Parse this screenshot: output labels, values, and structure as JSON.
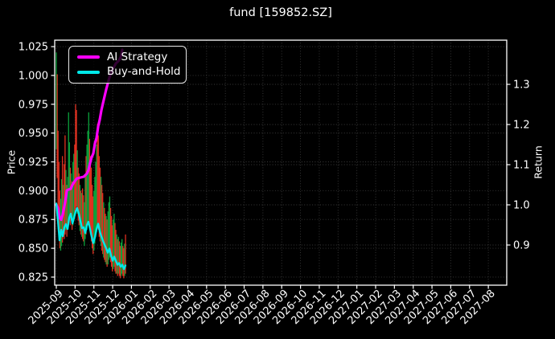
{
  "title": "fund [159852.SZ]",
  "chart_data": {
    "type": "mixed",
    "title": "fund [159852.SZ]",
    "background": "#000000",
    "text_color": "#ffffff",
    "frame_color": "#ffffff",
    "grid": {
      "on": true,
      "style": "dotted",
      "color": "#3b3b3b"
    },
    "x_axis": {
      "tick_labels": [
        "2025-09",
        "2025-10",
        "2025-11",
        "2025-12",
        "2026-01",
        "2026-02",
        "2026-03",
        "2026-04",
        "2026-05",
        "2026-06",
        "2026-07",
        "2026-08",
        "2026-09",
        "2026-10",
        "2026-11",
        "2026-12",
        "2027-01",
        "2027-02",
        "2027-03",
        "2027-04",
        "2027-05",
        "2027-06",
        "2027-07",
        "2027-08"
      ],
      "xlim_months": [
        -0.086,
        23.98
      ],
      "tick_rotation_deg": 45
    },
    "left_axis": {
      "label": "Price",
      "tick_labels": [
        "1.025",
        "1.000",
        "0.975",
        "0.950",
        "0.925",
        "0.900",
        "0.875",
        "0.850",
        "0.825"
      ],
      "tick_values": [
        1.025,
        1.0,
        0.975,
        0.95,
        0.925,
        0.9,
        0.875,
        0.85,
        0.825
      ],
      "ylim": [
        0.818,
        1.0306
      ]
    },
    "right_axis": {
      "label": "Return",
      "tick_labels": [
        "1.3",
        "1.2",
        "1.1",
        "1.0",
        "0.9"
      ],
      "tick_values": [
        1.3,
        1.2,
        1.1,
        1.0,
        0.9
      ],
      "ylim": [
        0.8,
        1.41
      ]
    },
    "legend": {
      "position": "upper-left",
      "items": [
        {
          "label": "AI Strategy",
          "color": "#ff00ff"
        },
        {
          "label": "Buy-and-Hold",
          "color": "#00e8e8"
        }
      ]
    },
    "series": [
      {
        "name": "AI Strategy",
        "type": "line",
        "axis": "right",
        "color": "#ff00ff",
        "width": 3.2,
        "points": [
          [
            0.0,
            1.0
          ],
          [
            0.09,
            0.992
          ],
          [
            0.17,
            0.968
          ],
          [
            0.26,
            0.963
          ],
          [
            0.34,
            0.976
          ],
          [
            0.43,
            0.996
          ],
          [
            0.51,
            1.018
          ],
          [
            0.56,
            1.036
          ],
          [
            0.64,
            1.038
          ],
          [
            0.77,
            1.04
          ],
          [
            0.86,
            1.05
          ],
          [
            0.94,
            1.056
          ],
          [
            1.03,
            1.062
          ],
          [
            1.11,
            1.066
          ],
          [
            1.28,
            1.068
          ],
          [
            1.46,
            1.07
          ],
          [
            1.63,
            1.078
          ],
          [
            1.71,
            1.086
          ],
          [
            1.8,
            1.104
          ],
          [
            1.88,
            1.118
          ],
          [
            1.97,
            1.128
          ],
          [
            2.06,
            1.154
          ],
          [
            2.14,
            1.166
          ],
          [
            2.23,
            1.196
          ],
          [
            2.31,
            1.212
          ],
          [
            2.4,
            1.236
          ],
          [
            2.48,
            1.252
          ],
          [
            2.57,
            1.27
          ],
          [
            2.66,
            1.288
          ],
          [
            2.74,
            1.302
          ],
          [
            2.83,
            1.318
          ],
          [
            2.91,
            1.328
          ],
          [
            3.0,
            1.338
          ],
          [
            3.08,
            1.344
          ],
          [
            3.17,
            1.352
          ],
          [
            3.26,
            1.356
          ],
          [
            3.34,
            1.36
          ],
          [
            3.43,
            1.368
          ],
          [
            3.51,
            1.386
          ]
        ]
      },
      {
        "name": "Buy-and-Hold",
        "type": "line",
        "axis": "right",
        "color": "#00e8e8",
        "width": 2.4,
        "points": [
          [
            0.0,
            1.003
          ],
          [
            0.09,
            0.96
          ],
          [
            0.17,
            0.912
          ],
          [
            0.26,
            0.938
          ],
          [
            0.34,
            0.922
          ],
          [
            0.43,
            0.944
          ],
          [
            0.51,
            0.952
          ],
          [
            0.6,
            0.94
          ],
          [
            0.69,
            0.968
          ],
          [
            0.77,
            0.978
          ],
          [
            0.86,
            0.954
          ],
          [
            0.94,
            0.968
          ],
          [
            1.03,
            0.984
          ],
          [
            1.11,
            0.992
          ],
          [
            1.2,
            0.978
          ],
          [
            1.28,
            0.96
          ],
          [
            1.37,
            0.942
          ],
          [
            1.46,
            0.944
          ],
          [
            1.54,
            0.93
          ],
          [
            1.63,
            0.95
          ],
          [
            1.71,
            0.958
          ],
          [
            1.8,
            0.94
          ],
          [
            1.88,
            0.921
          ],
          [
            1.97,
            0.905
          ],
          [
            2.06,
            0.92
          ],
          [
            2.14,
            0.94
          ],
          [
            2.23,
            0.953
          ],
          [
            2.31,
            0.934
          ],
          [
            2.4,
            0.921
          ],
          [
            2.48,
            0.911
          ],
          [
            2.57,
            0.901
          ],
          [
            2.66,
            0.891
          ],
          [
            2.74,
            0.881
          ],
          [
            2.83,
            0.891
          ],
          [
            2.91,
            0.874
          ],
          [
            3.0,
            0.861
          ],
          [
            3.08,
            0.871
          ],
          [
            3.17,
            0.861
          ],
          [
            3.26,
            0.851
          ],
          [
            3.34,
            0.855
          ],
          [
            3.43,
            0.846
          ],
          [
            3.51,
            0.851
          ],
          [
            3.6,
            0.84
          ],
          [
            3.68,
            0.849
          ]
        ]
      },
      {
        "name": "fund daily high-low bars",
        "type": "candlestick",
        "axis": "left",
        "up_color": "#0ba13b",
        "down_color": "#e03020",
        "bars": [
          [
            0.0,
            0.936,
            1.02,
            "u"
          ],
          [
            0.047,
            0.911,
            1.001,
            "d"
          ],
          [
            0.093,
            0.88,
            0.952,
            "d"
          ],
          [
            0.14,
            0.862,
            0.925,
            "d"
          ],
          [
            0.186,
            0.85,
            0.9,
            "d"
          ],
          [
            0.233,
            0.848,
            0.893,
            "u"
          ],
          [
            0.28,
            0.852,
            0.91,
            "u"
          ],
          [
            0.326,
            0.855,
            0.93,
            "d"
          ],
          [
            0.373,
            0.86,
            0.905,
            "u"
          ],
          [
            0.42,
            0.858,
            0.923,
            "d"
          ],
          [
            0.466,
            0.862,
            0.948,
            "d"
          ],
          [
            0.513,
            0.866,
            0.918,
            "u"
          ],
          [
            0.56,
            0.86,
            0.905,
            "d"
          ],
          [
            0.606,
            0.868,
            0.912,
            "u"
          ],
          [
            0.653,
            0.872,
            0.968,
            "u"
          ],
          [
            0.699,
            0.878,
            0.942,
            "u"
          ],
          [
            0.746,
            0.87,
            0.92,
            "d"
          ],
          [
            0.793,
            0.874,
            0.915,
            "u"
          ],
          [
            0.839,
            0.866,
            0.908,
            "d"
          ],
          [
            0.886,
            0.87,
            0.925,
            "u"
          ],
          [
            0.932,
            0.878,
            0.932,
            "u"
          ],
          [
            0.979,
            0.88,
            0.94,
            "d"
          ],
          [
            1.026,
            0.884,
            0.975,
            "d"
          ],
          [
            1.072,
            0.886,
            0.97,
            "d"
          ],
          [
            1.119,
            0.88,
            0.935,
            "u"
          ],
          [
            1.165,
            0.874,
            0.92,
            "d"
          ],
          [
            1.212,
            0.87,
            0.915,
            "d"
          ],
          [
            1.259,
            0.865,
            0.905,
            "u"
          ],
          [
            1.305,
            0.862,
            0.9,
            "d"
          ],
          [
            1.352,
            0.86,
            0.898,
            "u"
          ],
          [
            1.398,
            0.858,
            0.902,
            "d"
          ],
          [
            1.445,
            0.856,
            0.896,
            "d"
          ],
          [
            1.492,
            0.852,
            0.89,
            "u"
          ],
          [
            1.538,
            0.858,
            0.912,
            "u"
          ],
          [
            1.585,
            0.862,
            0.93,
            "d"
          ],
          [
            1.632,
            0.866,
            0.94,
            "u"
          ],
          [
            1.678,
            0.87,
            0.952,
            "u"
          ],
          [
            1.725,
            0.874,
            0.968,
            "u"
          ],
          [
            1.771,
            0.87,
            0.945,
            "d"
          ],
          [
            1.818,
            0.862,
            0.93,
            "d"
          ],
          [
            1.864,
            0.856,
            0.92,
            "d"
          ],
          [
            1.911,
            0.85,
            0.905,
            "d"
          ],
          [
            1.958,
            0.845,
            0.895,
            "d"
          ],
          [
            2.004,
            0.848,
            0.9,
            "u"
          ],
          [
            2.051,
            0.854,
            0.912,
            "u"
          ],
          [
            2.098,
            0.86,
            0.925,
            "u"
          ],
          [
            2.144,
            0.864,
            0.94,
            "u"
          ],
          [
            2.191,
            0.868,
            0.958,
            "d"
          ],
          [
            2.238,
            0.866,
            0.948,
            "d"
          ],
          [
            2.284,
            0.86,
            0.93,
            "d"
          ],
          [
            2.331,
            0.856,
            0.92,
            "d"
          ],
          [
            2.378,
            0.852,
            0.912,
            "u"
          ],
          [
            2.424,
            0.848,
            0.905,
            "d"
          ],
          [
            2.471,
            0.845,
            0.898,
            "d"
          ],
          [
            2.518,
            0.842,
            0.89,
            "u"
          ],
          [
            2.564,
            0.84,
            0.885,
            "d"
          ],
          [
            2.611,
            0.838,
            0.88,
            "d"
          ],
          [
            2.658,
            0.836,
            0.878,
            "u"
          ],
          [
            2.704,
            0.834,
            0.875,
            "d"
          ],
          [
            2.751,
            0.836,
            0.882,
            "u"
          ],
          [
            2.797,
            0.84,
            0.89,
            "u"
          ],
          [
            2.844,
            0.842,
            0.895,
            "u"
          ],
          [
            2.89,
            0.838,
            0.885,
            "d"
          ],
          [
            2.937,
            0.834,
            0.878,
            "d"
          ],
          [
            2.984,
            0.83,
            0.87,
            "d"
          ],
          [
            3.03,
            0.832,
            0.875,
            "u"
          ],
          [
            3.077,
            0.834,
            0.88,
            "u"
          ],
          [
            3.124,
            0.83,
            0.872,
            "d"
          ],
          [
            3.17,
            0.828,
            0.866,
            "d"
          ],
          [
            3.217,
            0.828,
            0.862,
            "u"
          ],
          [
            3.264,
            0.826,
            0.858,
            "d"
          ],
          [
            3.31,
            0.828,
            0.86,
            "u"
          ],
          [
            3.357,
            0.826,
            0.856,
            "d"
          ],
          [
            3.404,
            0.824,
            0.852,
            "d"
          ],
          [
            3.45,
            0.826,
            0.855,
            "u"
          ],
          [
            3.497,
            0.828,
            0.858,
            "u"
          ],
          [
            3.544,
            0.826,
            0.852,
            "d"
          ],
          [
            3.59,
            0.824,
            0.85,
            "d"
          ],
          [
            3.637,
            0.826,
            0.854,
            "u"
          ],
          [
            3.684,
            0.828,
            0.862,
            "d"
          ]
        ]
      }
    ]
  }
}
